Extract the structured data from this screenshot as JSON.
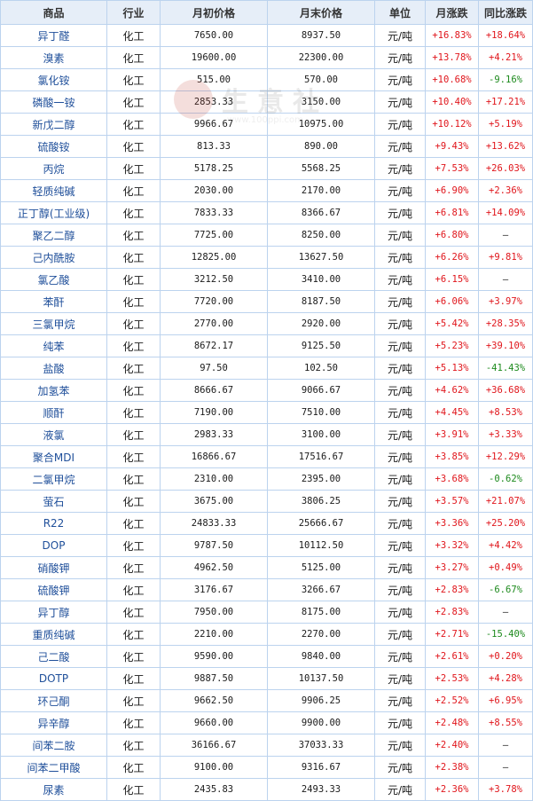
{
  "headers": [
    "商品",
    "行业",
    "月初价格",
    "月末价格",
    "单位",
    "月涨跌",
    "同比涨跌"
  ],
  "watermark": {
    "text": "生意社",
    "url": "www.100ppi.com"
  },
  "rows": [
    {
      "name": "异丁醛",
      "industry": "化工",
      "start": "7650.00",
      "end": "8937.50",
      "unit": "元/吨",
      "mom": "+16.83%",
      "yoy": "+18.64%"
    },
    {
      "name": "溴素",
      "industry": "化工",
      "start": "19600.00",
      "end": "22300.00",
      "unit": "元/吨",
      "mom": "+13.78%",
      "yoy": "+4.21%"
    },
    {
      "name": "氯化铵",
      "industry": "化工",
      "start": "515.00",
      "end": "570.00",
      "unit": "元/吨",
      "mom": "+10.68%",
      "yoy": "-9.16%"
    },
    {
      "name": "磷酸一铵",
      "industry": "化工",
      "start": "2853.33",
      "end": "3150.00",
      "unit": "元/吨",
      "mom": "+10.40%",
      "yoy": "+17.21%"
    },
    {
      "name": "新戊二醇",
      "industry": "化工",
      "start": "9966.67",
      "end": "10975.00",
      "unit": "元/吨",
      "mom": "+10.12%",
      "yoy": "+5.19%"
    },
    {
      "name": "硫酸铵",
      "industry": "化工",
      "start": "813.33",
      "end": "890.00",
      "unit": "元/吨",
      "mom": "+9.43%",
      "yoy": "+13.62%"
    },
    {
      "name": "丙烷",
      "industry": "化工",
      "start": "5178.25",
      "end": "5568.25",
      "unit": "元/吨",
      "mom": "+7.53%",
      "yoy": "+26.03%"
    },
    {
      "name": "轻质纯碱",
      "industry": "化工",
      "start": "2030.00",
      "end": "2170.00",
      "unit": "元/吨",
      "mom": "+6.90%",
      "yoy": "+2.36%"
    },
    {
      "name": "正丁醇(工业级)",
      "industry": "化工",
      "start": "7833.33",
      "end": "8366.67",
      "unit": "元/吨",
      "mom": "+6.81%",
      "yoy": "+14.09%"
    },
    {
      "name": "聚乙二醇",
      "industry": "化工",
      "start": "7725.00",
      "end": "8250.00",
      "unit": "元/吨",
      "mom": "+6.80%",
      "yoy": "—"
    },
    {
      "name": "己内酰胺",
      "industry": "化工",
      "start": "12825.00",
      "end": "13627.50",
      "unit": "元/吨",
      "mom": "+6.26%",
      "yoy": "+9.81%"
    },
    {
      "name": "氯乙酸",
      "industry": "化工",
      "start": "3212.50",
      "end": "3410.00",
      "unit": "元/吨",
      "mom": "+6.15%",
      "yoy": "—"
    },
    {
      "name": "苯酐",
      "industry": "化工",
      "start": "7720.00",
      "end": "8187.50",
      "unit": "元/吨",
      "mom": "+6.06%",
      "yoy": "+3.97%"
    },
    {
      "name": "三氯甲烷",
      "industry": "化工",
      "start": "2770.00",
      "end": "2920.00",
      "unit": "元/吨",
      "mom": "+5.42%",
      "yoy": "+28.35%"
    },
    {
      "name": "纯苯",
      "industry": "化工",
      "start": "8672.17",
      "end": "9125.50",
      "unit": "元/吨",
      "mom": "+5.23%",
      "yoy": "+39.10%"
    },
    {
      "name": "盐酸",
      "industry": "化工",
      "start": "97.50",
      "end": "102.50",
      "unit": "元/吨",
      "mom": "+5.13%",
      "yoy": "-41.43%"
    },
    {
      "name": "加氢苯",
      "industry": "化工",
      "start": "8666.67",
      "end": "9066.67",
      "unit": "元/吨",
      "mom": "+4.62%",
      "yoy": "+36.68%"
    },
    {
      "name": "顺酐",
      "industry": "化工",
      "start": "7190.00",
      "end": "7510.00",
      "unit": "元/吨",
      "mom": "+4.45%",
      "yoy": "+8.53%"
    },
    {
      "name": "液氯",
      "industry": "化工",
      "start": "2983.33",
      "end": "3100.00",
      "unit": "元/吨",
      "mom": "+3.91%",
      "yoy": "+3.33%"
    },
    {
      "name": "聚合MDI",
      "industry": "化工",
      "start": "16866.67",
      "end": "17516.67",
      "unit": "元/吨",
      "mom": "+3.85%",
      "yoy": "+12.29%"
    },
    {
      "name": "二氯甲烷",
      "industry": "化工",
      "start": "2310.00",
      "end": "2395.00",
      "unit": "元/吨",
      "mom": "+3.68%",
      "yoy": "-0.62%"
    },
    {
      "name": "萤石",
      "industry": "化工",
      "start": "3675.00",
      "end": "3806.25",
      "unit": "元/吨",
      "mom": "+3.57%",
      "yoy": "+21.07%"
    },
    {
      "name": "R22",
      "industry": "化工",
      "start": "24833.33",
      "end": "25666.67",
      "unit": "元/吨",
      "mom": "+3.36%",
      "yoy": "+25.20%"
    },
    {
      "name": "DOP",
      "industry": "化工",
      "start": "9787.50",
      "end": "10112.50",
      "unit": "元/吨",
      "mom": "+3.32%",
      "yoy": "+4.42%"
    },
    {
      "name": "硝酸钾",
      "industry": "化工",
      "start": "4962.50",
      "end": "5125.00",
      "unit": "元/吨",
      "mom": "+3.27%",
      "yoy": "+0.49%"
    },
    {
      "name": "硫酸钾",
      "industry": "化工",
      "start": "3176.67",
      "end": "3266.67",
      "unit": "元/吨",
      "mom": "+2.83%",
      "yoy": "-6.67%"
    },
    {
      "name": "异丁醇",
      "industry": "化工",
      "start": "7950.00",
      "end": "8175.00",
      "unit": "元/吨",
      "mom": "+2.83%",
      "yoy": "—"
    },
    {
      "name": "重质纯碱",
      "industry": "化工",
      "start": "2210.00",
      "end": "2270.00",
      "unit": "元/吨",
      "mom": "+2.71%",
      "yoy": "-15.40%"
    },
    {
      "name": "己二酸",
      "industry": "化工",
      "start": "9590.00",
      "end": "9840.00",
      "unit": "元/吨",
      "mom": "+2.61%",
      "yoy": "+0.20%"
    },
    {
      "name": "DOTP",
      "industry": "化工",
      "start": "9887.50",
      "end": "10137.50",
      "unit": "元/吨",
      "mom": "+2.53%",
      "yoy": "+4.28%"
    },
    {
      "name": "环己酮",
      "industry": "化工",
      "start": "9662.50",
      "end": "9906.25",
      "unit": "元/吨",
      "mom": "+2.52%",
      "yoy": "+6.95%"
    },
    {
      "name": "异辛醇",
      "industry": "化工",
      "start": "9660.00",
      "end": "9900.00",
      "unit": "元/吨",
      "mom": "+2.48%",
      "yoy": "+8.55%"
    },
    {
      "name": "间苯二胺",
      "industry": "化工",
      "start": "36166.67",
      "end": "37033.33",
      "unit": "元/吨",
      "mom": "+2.40%",
      "yoy": "—"
    },
    {
      "name": "间苯二甲酸",
      "industry": "化工",
      "start": "9100.00",
      "end": "9316.67",
      "unit": "元/吨",
      "mom": "+2.38%",
      "yoy": "—"
    },
    {
      "name": "尿素",
      "industry": "化工",
      "start": "2435.83",
      "end": "2493.33",
      "unit": "元/吨",
      "mom": "+2.36%",
      "yoy": "+3.78%"
    }
  ]
}
